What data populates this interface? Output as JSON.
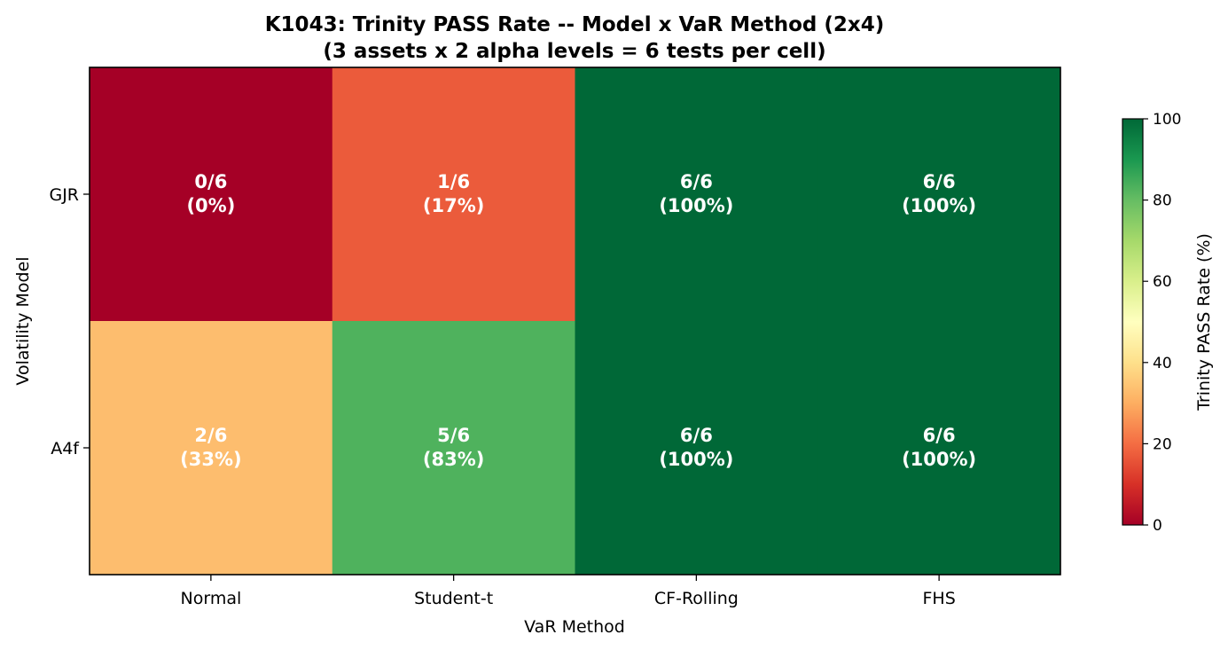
{
  "chart_data": {
    "type": "heatmap",
    "title": "K1043: Trinity PASS Rate -- Model x VaR Method (2x4)",
    "subtitle": "(3 assets x 2 alpha levels = 6 tests per cell)",
    "xlabel": "VaR Method",
    "ylabel": "Volatility Model",
    "x_categories": [
      "Normal",
      "Student-t",
      "CF-Rolling",
      "FHS"
    ],
    "y_categories": [
      "GJR",
      "A4f"
    ],
    "values": [
      [
        0,
        17,
        100,
        100
      ],
      [
        33,
        83,
        100,
        100
      ]
    ],
    "annotations": [
      [
        {
          "count": "0/6",
          "pct": "(0%)"
        },
        {
          "count": "1/6",
          "pct": "(17%)"
        },
        {
          "count": "6/6",
          "pct": "(100%)"
        },
        {
          "count": "6/6",
          "pct": "(100%)"
        }
      ],
      [
        {
          "count": "2/6",
          "pct": "(33%)"
        },
        {
          "count": "5/6",
          "pct": "(83%)"
        },
        {
          "count": "6/6",
          "pct": "(100%)"
        },
        {
          "count": "6/6",
          "pct": "(100%)"
        }
      ]
    ],
    "colorbar": {
      "label": "Trinity PASS Rate (%)",
      "range": [
        0,
        100
      ],
      "ticks": [
        0,
        20,
        40,
        60,
        80,
        100
      ],
      "colormap": "RdYlGn"
    },
    "grid": false
  }
}
